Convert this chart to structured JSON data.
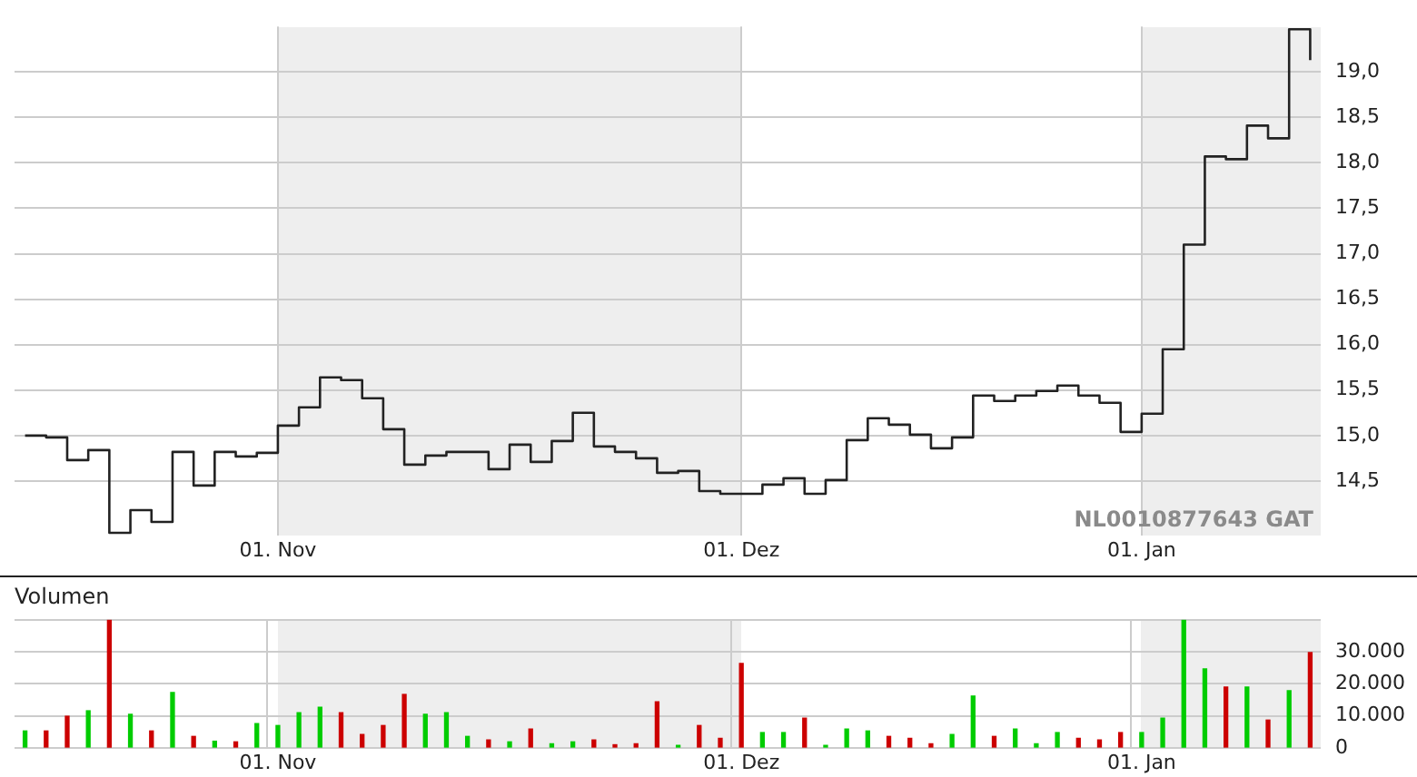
{
  "chart_data": [
    {
      "type": "step",
      "categories": [
        null,
        null,
        null,
        null,
        null,
        null,
        null,
        null,
        null,
        null,
        null,
        null,
        "01. Nov",
        null,
        null,
        null,
        null,
        null,
        null,
        null,
        null,
        null,
        null,
        null,
        null,
        null,
        null,
        null,
        null,
        null,
        null,
        null,
        null,
        null,
        "01. Dez",
        null,
        null,
        null,
        null,
        null,
        null,
        null,
        null,
        null,
        null,
        null,
        null,
        null,
        null,
        null,
        null,
        null,
        null,
        "01. Jan",
        null,
        null,
        null,
        null,
        null,
        null,
        null,
        null
      ],
      "series": [
        {
          "color": "#222222",
          "values": [
            15.0,
            14.98,
            14.73,
            14.84,
            13.93,
            14.18,
            14.05,
            14.82,
            14.45,
            14.82,
            14.77,
            14.81,
            15.11,
            15.31,
            15.64,
            15.61,
            15.41,
            15.07,
            14.68,
            14.78,
            14.82,
            14.82,
            14.63,
            14.9,
            14.71,
            14.94,
            15.25,
            14.88,
            14.82,
            14.75,
            14.59,
            14.61,
            14.39,
            14.36,
            14.36,
            14.46,
            14.53,
            14.36,
            14.51,
            14.95,
            15.19,
            15.12,
            15.01,
            14.86,
            14.98,
            15.44,
            15.38,
            15.44,
            15.49,
            15.55,
            15.44,
            15.36,
            15.04,
            15.24,
            15.95,
            17.1,
            18.07,
            18.04,
            18.41,
            18.27,
            19.47,
            19.13
          ]
        }
      ],
      "ylim": [
        13.9,
        19.5
      ],
      "yticks": [
        {
          "value": 14.5,
          "label": "14,5"
        },
        {
          "value": 15,
          "label": "15,0"
        },
        {
          "value": 15.5,
          "label": "15,5"
        },
        {
          "value": 16,
          "label": "16,0"
        },
        {
          "value": 16.5,
          "label": "16,5"
        },
        {
          "value": 17,
          "label": "17,0"
        },
        {
          "value": 17.5,
          "label": "17,5"
        },
        {
          "value": 18,
          "label": "18,0"
        },
        {
          "value": 18.5,
          "label": "18,5"
        },
        {
          "value": 19,
          "label": "19,0"
        }
      ],
      "annotations": [
        "NL0010877643 GAT"
      ],
      "grid": true,
      "legend": false,
      "marker": "none"
    },
    {
      "type": "bar",
      "title": "Volumen",
      "categories": [
        null,
        null,
        null,
        null,
        null,
        null,
        null,
        null,
        null,
        null,
        null,
        null,
        "01. Nov",
        null,
        null,
        null,
        null,
        null,
        null,
        null,
        null,
        null,
        null,
        null,
        null,
        null,
        null,
        null,
        null,
        null,
        null,
        null,
        null,
        null,
        "01. Dez",
        null,
        null,
        null,
        null,
        null,
        null,
        null,
        null,
        null,
        null,
        null,
        null,
        null,
        null,
        null,
        null,
        null,
        null,
        "01. Jan",
        null,
        null,
        null,
        null,
        null,
        null,
        null,
        null
      ],
      "values": [
        5300,
        5300,
        9900,
        11600,
        40000,
        10500,
        5300,
        17300,
        3600,
        2100,
        1900,
        7600,
        7000,
        11000,
        12700,
        11000,
        4200,
        7000,
        16700,
        10500,
        11000,
        3600,
        2500,
        1900,
        5900,
        1300,
        1900,
        2500,
        1000,
        1300,
        14400,
        800,
        7000,
        3000,
        26400,
        4800,
        4800,
        9300,
        800,
        5900,
        5300,
        3600,
        3000,
        1300,
        4200,
        16200,
        3600,
        5900,
        1300,
        4800,
        3000,
        2500,
        4800,
        4800,
        9300,
        40000,
        24700,
        19000,
        19000,
        8700,
        17900,
        29800
      ],
      "colors": [
        "#00cc00",
        "#cc0000",
        "#cc0000",
        "#00cc00",
        "#cc0000",
        "#00cc00",
        "#cc0000",
        "#00cc00",
        "#cc0000",
        "#00cc00",
        "#cc0000",
        "#00cc00",
        "#00cc00",
        "#00cc00",
        "#00cc00",
        "#cc0000",
        "#cc0000",
        "#cc0000",
        "#cc0000",
        "#00cc00",
        "#00cc00",
        "#00cc00",
        "#cc0000",
        "#00cc00",
        "#cc0000",
        "#00cc00",
        "#00cc00",
        "#cc0000",
        "#cc0000",
        "#cc0000",
        "#cc0000",
        "#00cc00",
        "#cc0000",
        "#cc0000",
        "#cc0000",
        "#00cc00",
        "#00cc00",
        "#cc0000",
        "#00cc00",
        "#00cc00",
        "#00cc00",
        "#cc0000",
        "#cc0000",
        "#cc0000",
        "#00cc00",
        "#00cc00",
        "#cc0000",
        "#00cc00",
        "#00cc00",
        "#00cc00",
        "#cc0000",
        "#cc0000",
        "#cc0000",
        "#00cc00",
        "#00cc00",
        "#00cc00",
        "#00cc00",
        "#cc0000",
        "#00cc00",
        "#cc0000",
        "#00cc00",
        "#cc0000"
      ],
      "ylim": [
        0,
        40000
      ],
      "yticks": [
        0,
        {
          "value": 10000,
          "label": "10.000"
        },
        {
          "value": 20000,
          "label": "20.000"
        },
        {
          "value": 30000,
          "label": "30.000"
        },
        {
          "value": 40000,
          "label": null
        }
      ],
      "grid": true,
      "legend": false
    }
  ]
}
